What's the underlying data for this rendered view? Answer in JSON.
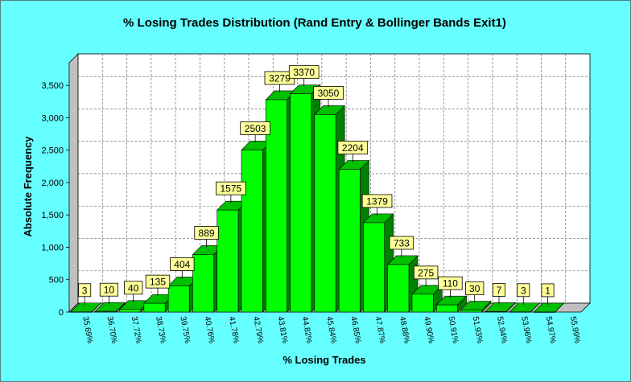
{
  "chart_data": {
    "type": "bar",
    "title": "% Losing Trades Distribution (Rand Entry & Bollinger Bands Exit1)",
    "xlabel": "% Losing Trades",
    "ylabel": "Absolute Frequency",
    "categories": [
      "35.69%",
      "36.70%",
      "37.72%",
      "38.73%",
      "39.75%",
      "40.76%",
      "41.78%",
      "42.79%",
      "43.81%",
      "44.82%",
      "45.84%",
      "46.85%",
      "47.87%",
      "48.88%",
      "49.90%",
      "50.91%",
      "51.93%",
      "52.94%",
      "53.96%",
      "54.97%",
      "55.99%"
    ],
    "values": [
      3,
      10,
      40,
      135,
      404,
      889,
      1575,
      2503,
      3279,
      3370,
      3050,
      2204,
      1379,
      733,
      275,
      110,
      30,
      7,
      3,
      1,
      0
    ],
    "data_labels": [
      "3",
      "10",
      "40",
      "135",
      "404",
      "889",
      "1575",
      "2503",
      "3279",
      "3370",
      "3050",
      "2204",
      "1379",
      "733",
      "275",
      "110",
      "30",
      "7",
      "3",
      "1",
      ""
    ],
    "y_ticks": [
      "0",
      "500",
      "1,000",
      "1,500",
      "2,000",
      "2,500",
      "3,000",
      "3,500"
    ],
    "ylim": [
      0,
      3850
    ],
    "grid": true,
    "legend": "none",
    "colors": {
      "background": "#66ffff",
      "bar_front": "#00ff00",
      "bar_side": "#008000",
      "bar_top": "#00c000",
      "label_box": "#ffff99",
      "plot_wall": "#ffffff",
      "floor": "#c0c0c0"
    }
  }
}
